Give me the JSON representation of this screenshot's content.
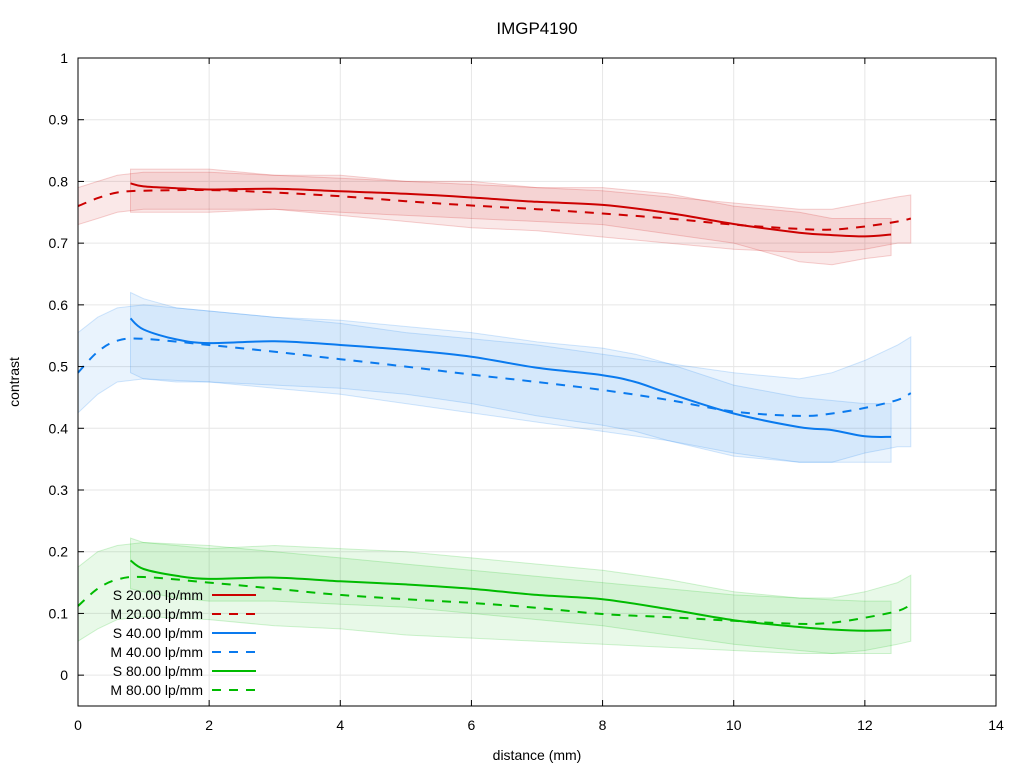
{
  "chart_data": {
    "type": "line",
    "title": "IMGP4190",
    "xlabel": "distance (mm)",
    "ylabel": "contrast",
    "xlim": [
      0,
      14
    ],
    "ylim": [
      -0.05,
      1
    ],
    "xticks": [
      0,
      2,
      4,
      6,
      8,
      10,
      12,
      14
    ],
    "yticks": [
      0,
      0.1,
      0.2,
      0.3,
      0.4,
      0.5,
      0.6,
      0.7,
      0.8,
      0.9,
      1
    ],
    "grid": true,
    "legend_position": "bottom-left",
    "colors": {
      "red": "#cc0000",
      "blue": "#0a7aee",
      "green": "#00bb00"
    },
    "series": [
      {
        "name": "S 20.00 lp/mm",
        "color": "#cc0000",
        "style": "solid",
        "x": [
          0.8,
          1.0,
          1.5,
          2.0,
          3.0,
          4.0,
          5.0,
          6.0,
          7.0,
          8.0,
          9.0,
          10.0,
          11.0,
          11.5,
          12.0,
          12.4
        ],
        "y": [
          0.797,
          0.792,
          0.789,
          0.787,
          0.788,
          0.784,
          0.78,
          0.774,
          0.767,
          0.762,
          0.749,
          0.731,
          0.717,
          0.713,
          0.711,
          0.714
        ],
        "band_upper": [
          0.82,
          0.82,
          0.82,
          0.82,
          0.81,
          0.81,
          0.8,
          0.8,
          0.79,
          0.79,
          0.78,
          0.76,
          0.75,
          0.74,
          0.74,
          0.74
        ],
        "band_lower": [
          0.75,
          0.75,
          0.75,
          0.75,
          0.755,
          0.75,
          0.745,
          0.74,
          0.735,
          0.73,
          0.715,
          0.7,
          0.67,
          0.665,
          0.675,
          0.68
        ]
      },
      {
        "name": "M 20.00 lp/mm",
        "color": "#cc0000",
        "style": "dashed",
        "x": [
          0.0,
          0.3,
          0.6,
          1.0,
          2.0,
          3.0,
          4.0,
          5.0,
          6.0,
          7.0,
          8.0,
          9.0,
          10.0,
          11.0,
          11.5,
          12.0,
          12.5,
          12.7
        ],
        "y": [
          0.76,
          0.773,
          0.782,
          0.785,
          0.786,
          0.782,
          0.776,
          0.768,
          0.761,
          0.755,
          0.748,
          0.74,
          0.73,
          0.723,
          0.722,
          0.727,
          0.735,
          0.74
        ],
        "band_upper": [
          0.79,
          0.8,
          0.81,
          0.815,
          0.815,
          0.81,
          0.805,
          0.8,
          0.795,
          0.79,
          0.785,
          0.775,
          0.765,
          0.755,
          0.755,
          0.765,
          0.775,
          0.778
        ],
        "band_lower": [
          0.73,
          0.74,
          0.75,
          0.755,
          0.755,
          0.755,
          0.745,
          0.735,
          0.725,
          0.72,
          0.71,
          0.7,
          0.69,
          0.685,
          0.685,
          0.69,
          0.7,
          0.7
        ]
      },
      {
        "name": "S 40.00 lp/mm",
        "color": "#0a7aee",
        "style": "solid",
        "x": [
          0.8,
          1.0,
          1.5,
          2.0,
          3.0,
          4.0,
          5.0,
          6.0,
          7.0,
          8.0,
          8.5,
          9.0,
          10.0,
          11.0,
          11.5,
          12.0,
          12.4
        ],
        "y": [
          0.578,
          0.56,
          0.544,
          0.538,
          0.541,
          0.535,
          0.527,
          0.516,
          0.498,
          0.486,
          0.475,
          0.457,
          0.424,
          0.402,
          0.397,
          0.387,
          0.386
        ],
        "band_upper": [
          0.62,
          0.61,
          0.595,
          0.59,
          0.58,
          0.575,
          0.565,
          0.555,
          0.54,
          0.53,
          0.52,
          0.505,
          0.47,
          0.45,
          0.445,
          0.44,
          0.44
        ],
        "band_lower": [
          0.49,
          0.48,
          0.475,
          0.475,
          0.47,
          0.465,
          0.455,
          0.44,
          0.42,
          0.405,
          0.395,
          0.38,
          0.355,
          0.345,
          0.345,
          0.345,
          0.345
        ]
      },
      {
        "name": "M 40.00 lp/mm",
        "color": "#0a7aee",
        "style": "dashed",
        "x": [
          0.0,
          0.3,
          0.6,
          1.0,
          2.0,
          3.0,
          4.0,
          5.0,
          6.0,
          7.0,
          8.0,
          9.0,
          10.0,
          11.0,
          11.5,
          12.0,
          12.5,
          12.7
        ],
        "y": [
          0.49,
          0.524,
          0.542,
          0.545,
          0.535,
          0.524,
          0.512,
          0.5,
          0.487,
          0.475,
          0.462,
          0.446,
          0.427,
          0.42,
          0.424,
          0.433,
          0.446,
          0.457
        ],
        "band_upper": [
          0.555,
          0.58,
          0.595,
          0.6,
          0.59,
          0.58,
          0.57,
          0.555,
          0.545,
          0.535,
          0.52,
          0.505,
          0.49,
          0.48,
          0.49,
          0.51,
          0.535,
          0.548
        ],
        "band_lower": [
          0.425,
          0.455,
          0.475,
          0.48,
          0.475,
          0.465,
          0.455,
          0.44,
          0.425,
          0.41,
          0.395,
          0.38,
          0.36,
          0.345,
          0.345,
          0.36,
          0.37,
          0.37
        ]
      },
      {
        "name": "S 80.00 lp/mm",
        "color": "#00bb00",
        "style": "solid",
        "x": [
          0.8,
          1.0,
          1.5,
          2.0,
          3.0,
          4.0,
          5.0,
          6.0,
          7.0,
          8.0,
          9.0,
          10.0,
          11.0,
          11.5,
          12.0,
          12.4
        ],
        "y": [
          0.186,
          0.172,
          0.161,
          0.156,
          0.158,
          0.152,
          0.147,
          0.14,
          0.13,
          0.123,
          0.107,
          0.089,
          0.078,
          0.074,
          0.072,
          0.073
        ],
        "band_upper": [
          0.222,
          0.215,
          0.21,
          0.205,
          0.21,
          0.205,
          0.2,
          0.19,
          0.18,
          0.17,
          0.155,
          0.135,
          0.125,
          0.122,
          0.12,
          0.12
        ],
        "band_lower": [
          0.14,
          0.135,
          0.125,
          0.12,
          0.12,
          0.115,
          0.11,
          0.1,
          0.09,
          0.08,
          0.065,
          0.05,
          0.04,
          0.035,
          0.035,
          0.035
        ]
      },
      {
        "name": "M 80.00 lp/mm",
        "color": "#00bb00",
        "style": "dashed",
        "x": [
          0.0,
          0.3,
          0.6,
          1.0,
          2.0,
          3.0,
          4.0,
          5.0,
          6.0,
          7.0,
          8.0,
          9.0,
          10.0,
          11.0,
          11.5,
          12.0,
          12.5,
          12.7
        ],
        "y": [
          0.112,
          0.14,
          0.155,
          0.159,
          0.15,
          0.14,
          0.13,
          0.123,
          0.117,
          0.109,
          0.099,
          0.094,
          0.088,
          0.083,
          0.085,
          0.093,
          0.104,
          0.114
        ],
        "band_upper": [
          0.175,
          0.2,
          0.21,
          0.215,
          0.21,
          0.2,
          0.19,
          0.18,
          0.17,
          0.16,
          0.15,
          0.14,
          0.13,
          0.125,
          0.125,
          0.135,
          0.15,
          0.162
        ],
        "band_lower": [
          0.055,
          0.075,
          0.09,
          0.095,
          0.09,
          0.08,
          0.075,
          0.065,
          0.06,
          0.055,
          0.05,
          0.045,
          0.04,
          0.035,
          0.035,
          0.04,
          0.05,
          0.055
        ]
      }
    ]
  }
}
